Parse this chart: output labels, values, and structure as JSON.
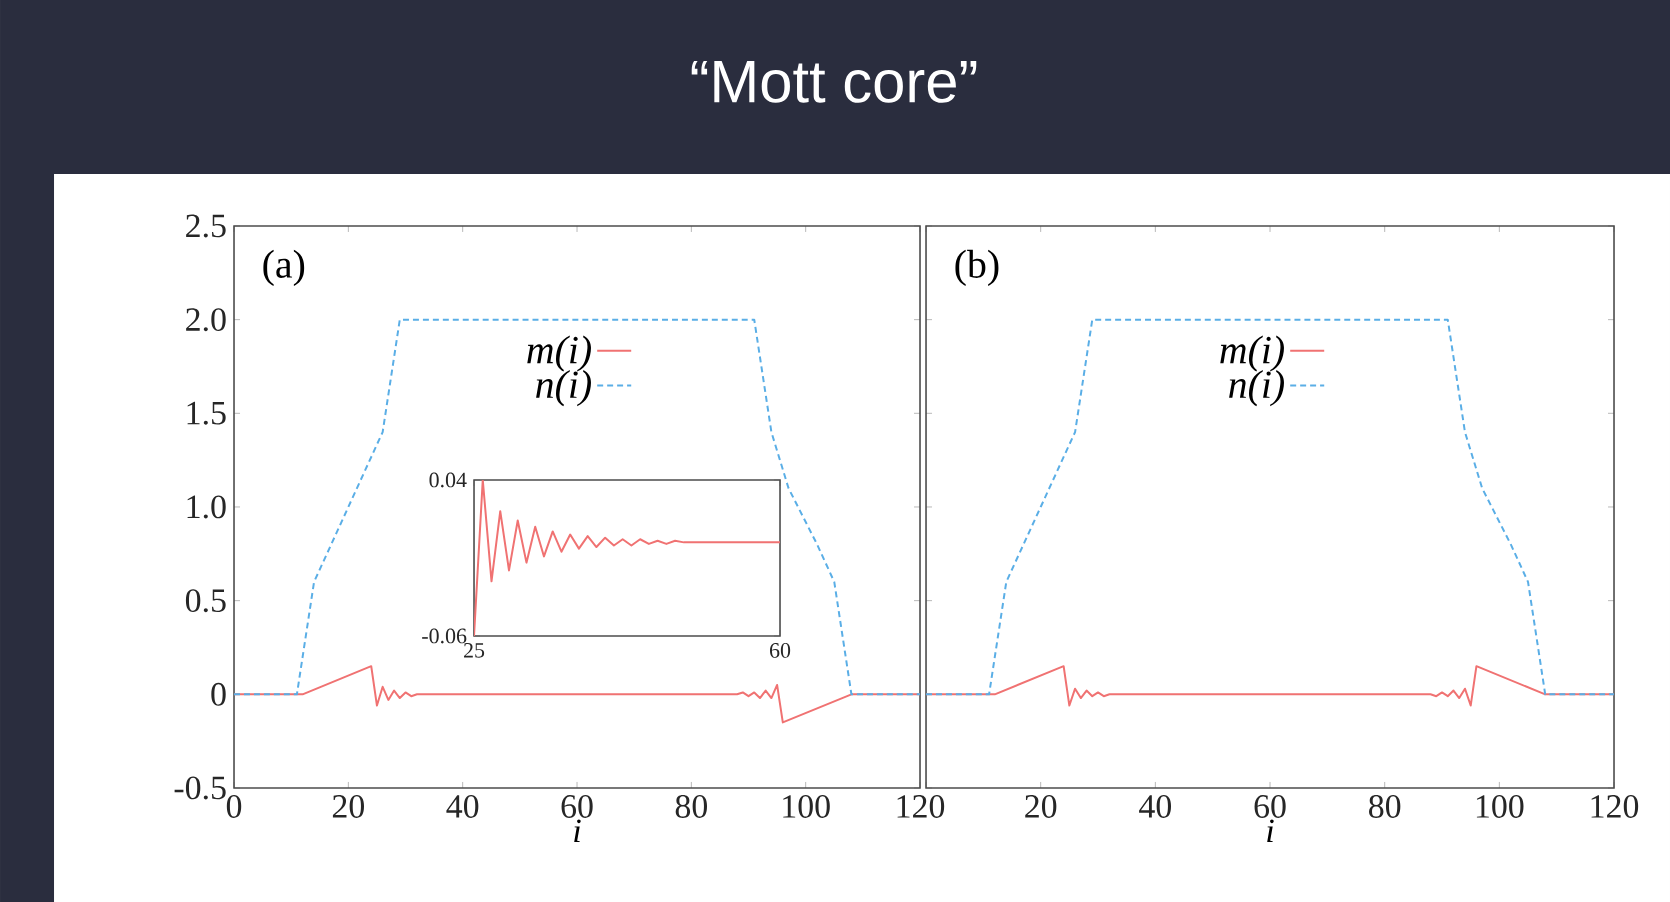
{
  "chart_data": [
    {
      "type": "line",
      "title": "“Mott core”",
      "xlabel": "i",
      "xlim": [
        0,
        120
      ],
      "ylim": [
        -0.5,
        2.5
      ],
      "xticks": [
        0,
        20,
        40,
        60,
        80,
        100,
        120
      ],
      "yticks": [
        -0.5,
        0,
        0.5,
        {
          "value": 1,
          "label": "1.0"
        },
        1.5,
        {
          "value": 2,
          "label": "2.0"
        },
        2.5
      ],
      "annotations": [
        "(a)"
      ],
      "legend": "top",
      "marker": "none",
      "series": [
        {
          "name": "m(i)",
          "color": "#f07272",
          "line_style": "solid",
          "x": [
            0,
            12,
            24,
            25,
            26,
            27,
            28,
            29,
            30,
            31,
            32,
            88,
            89,
            90,
            91,
            92,
            93,
            94,
            95,
            96,
            108,
            120
          ],
          "values": [
            0,
            0,
            0.15,
            -0.06,
            0.04,
            -0.03,
            0.02,
            -0.02,
            0.01,
            -0.01,
            0,
            0,
            0.01,
            -0.01,
            0.01,
            -0.02,
            0.02,
            -0.02,
            0.05,
            -0.15,
            0,
            0
          ]
        },
        {
          "name": "n(i)",
          "color": "#5aaee6",
          "line_style": "dashed",
          "x": [
            0,
            11,
            14,
            20,
            26,
            29,
            91,
            94,
            97,
            102,
            105,
            108,
            120
          ],
          "values": [
            0,
            0,
            0.6,
            1.0,
            1.4,
            2.0,
            2.0,
            1.4,
            1.1,
            0.8,
            0.6,
            0,
            0
          ]
        }
      ]
    },
    {
      "type": "line",
      "xlim": [
        25,
        60
      ],
      "ylim": [
        -0.06,
        0.04
      ],
      "xticks": [
        25,
        60
      ],
      "yticks": [
        -0.06,
        0.04
      ],
      "marker": "none",
      "series": [
        {
          "color": "#f07272",
          "line_style": "solid",
          "x": [
            25,
            26,
            27,
            28,
            29,
            30,
            31,
            32,
            33,
            34,
            35,
            36,
            37,
            38,
            39,
            40,
            41,
            42,
            43,
            44,
            45,
            46,
            47,
            48,
            49,
            50,
            60
          ],
          "values": [
            -0.06,
            0.04,
            -0.025,
            0.02,
            -0.018,
            0.014,
            -0.013,
            0.01,
            -0.009,
            0.007,
            -0.006,
            0.005,
            -0.004,
            0.004,
            -0.003,
            0.003,
            -0.002,
            0.002,
            -0.002,
            0.002,
            -0.001,
            0.001,
            -0.001,
            0.001,
            0,
            0,
            0
          ]
        }
      ]
    },
    {
      "type": "line",
      "xlabel": "i",
      "xlim": [
        0,
        120
      ],
      "ylim": [
        -0.5,
        2.5
      ],
      "xticks": [
        {
          "value": 0,
          "label": null
        },
        20,
        40,
        60,
        80,
        100,
        120
      ],
      "yticks": [
        -0.5,
        0,
        0.5,
        1,
        1.5,
        2,
        2.5
      ],
      "tick_labels": "x",
      "annotations": [
        "(b)"
      ],
      "legend": "top",
      "marker": "none",
      "series": [
        {
          "name": "m(i)",
          "color": "#f07272",
          "line_style": "solid",
          "x": [
            0,
            12,
            24,
            25,
            26,
            27,
            28,
            29,
            30,
            31,
            32,
            88,
            89,
            90,
            91,
            92,
            93,
            94,
            95,
            96,
            108,
            120
          ],
          "values": [
            0,
            0,
            0.15,
            -0.06,
            0.03,
            -0.02,
            0.02,
            -0.01,
            0.01,
            -0.01,
            0,
            0,
            -0.01,
            0.01,
            -0.01,
            0.02,
            -0.02,
            0.03,
            -0.06,
            0.15,
            0,
            0
          ]
        },
        {
          "name": "n(i)",
          "color": "#5aaee6",
          "line_style": "dashed",
          "x": [
            0,
            11,
            14,
            20,
            26,
            29,
            91,
            94,
            97,
            102,
            105,
            108,
            120
          ],
          "values": [
            0,
            0,
            0.6,
            1.0,
            1.4,
            2.0,
            2.0,
            1.4,
            1.1,
            0.8,
            0.6,
            0,
            0
          ]
        }
      ]
    }
  ]
}
